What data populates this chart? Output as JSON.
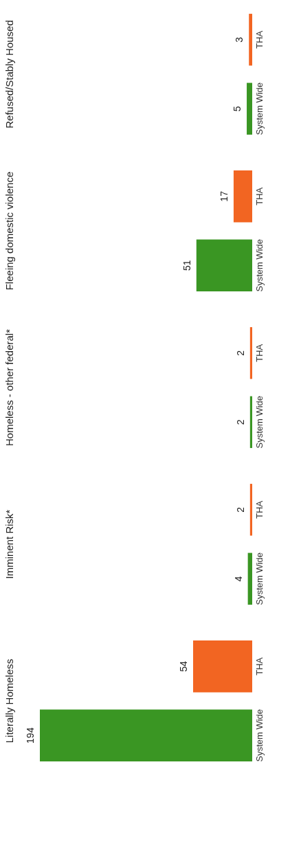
{
  "chart_data": {
    "type": "bar",
    "orientation": "horizontal",
    "data_labels": true,
    "categories": [
      "Refused/Stably Housed",
      "Fleeing domestic violence",
      "Homeless - other federal*",
      "Imminent Risk*",
      "Literally Homeless"
    ],
    "series": [
      {
        "name": "THA",
        "color": "#f26522",
        "values": [
          3,
          17,
          2,
          2,
          54
        ]
      },
      {
        "name": "System Wide",
        "color": "#3a9623",
        "values": [
          5,
          51,
          2,
          4,
          194
        ]
      }
    ]
  }
}
